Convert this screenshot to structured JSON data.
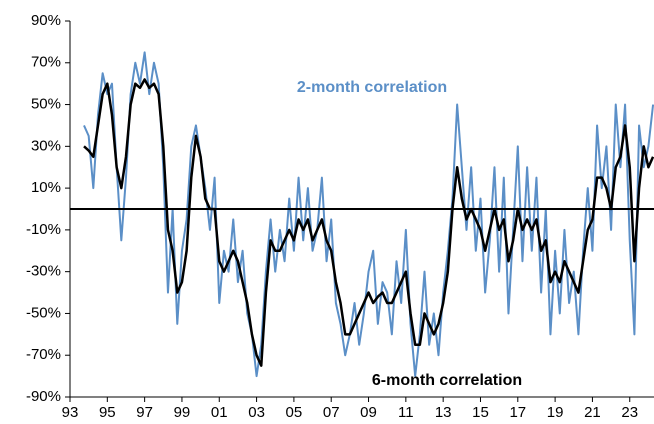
{
  "chart_data": {
    "type": "line",
    "annotations": [
      "2-month correlation",
      "6-month correlation"
    ],
    "x": [
      1993.75,
      1994,
      1994.25,
      1994.5,
      1994.75,
      1995,
      1995.25,
      1995.5,
      1995.75,
      1996,
      1996.25,
      1996.5,
      1996.75,
      1997,
      1997.25,
      1997.5,
      1997.75,
      1998,
      1998.25,
      1998.5,
      1998.75,
      1999,
      1999.25,
      1999.5,
      1999.75,
      2000,
      2000.25,
      2000.5,
      2000.75,
      2001,
      2001.25,
      2001.5,
      2001.75,
      2002,
      2002.25,
      2002.5,
      2002.75,
      2003,
      2003.25,
      2003.5,
      2003.75,
      2004,
      2004.25,
      2004.5,
      2004.75,
      2005,
      2005.25,
      2005.5,
      2005.75,
      2006,
      2006.25,
      2006.5,
      2006.75,
      2007,
      2007.25,
      2007.5,
      2007.75,
      2008,
      2008.25,
      2008.5,
      2008.75,
      2009,
      2009.25,
      2009.5,
      2009.75,
      2010,
      2010.25,
      2010.5,
      2010.75,
      2011,
      2011.25,
      2011.5,
      2011.75,
      2012,
      2012.25,
      2012.5,
      2012.75,
      2013,
      2013.25,
      2013.5,
      2013.75,
      2014,
      2014.25,
      2014.5,
      2014.75,
      2015,
      2015.25,
      2015.5,
      2015.75,
      2016,
      2016.25,
      2016.5,
      2016.75,
      2017,
      2017.25,
      2017.5,
      2017.75,
      2018,
      2018.25,
      2018.5,
      2018.75,
      2019,
      2019.25,
      2019.5,
      2019.75,
      2020,
      2020.25,
      2020.5,
      2020.75,
      2021,
      2021.25,
      2021.5,
      2021.75,
      2022,
      2022.25,
      2022.5,
      2022.75,
      2023,
      2023.25,
      2023.5,
      2023.75,
      2024,
      2024.25
    ],
    "series": [
      {
        "name": "2-month correlation",
        "color": "#5b8fc7",
        "width": 2,
        "values": [
          40,
          35,
          10,
          45,
          65,
          55,
          60,
          20,
          -15,
          15,
          55,
          70,
          60,
          75,
          55,
          70,
          60,
          20,
          -40,
          0,
          -55,
          -20,
          -5,
          30,
          40,
          25,
          10,
          -10,
          15,
          -45,
          -20,
          -30,
          -5,
          -35,
          -20,
          -50,
          -60,
          -80,
          -65,
          -30,
          -5,
          -30,
          -10,
          -25,
          5,
          -20,
          15,
          -15,
          10,
          -20,
          -10,
          15,
          -25,
          -5,
          -45,
          -55,
          -70,
          -60,
          -45,
          -65,
          -50,
          -30,
          -20,
          -55,
          -35,
          -40,
          -60,
          -25,
          -45,
          -10,
          -55,
          -80,
          -60,
          -30,
          -65,
          -50,
          -70,
          -40,
          -20,
          5,
          50,
          20,
          -10,
          20,
          -20,
          5,
          -40,
          -15,
          20,
          -30,
          15,
          -50,
          -10,
          30,
          -25,
          20,
          -20,
          15,
          -40,
          0,
          -60,
          -20,
          -50,
          -10,
          -45,
          -30,
          -60,
          -20,
          10,
          -20,
          40,
          10,
          30,
          -10,
          50,
          20,
          50,
          -15,
          -60,
          40,
          20,
          30,
          50
        ]
      },
      {
        "name": "6-month correlation",
        "color": "#000000",
        "width": 2.5,
        "values": [
          30,
          28,
          25,
          40,
          55,
          60,
          45,
          20,
          10,
          25,
          50,
          60,
          58,
          62,
          58,
          60,
          55,
          30,
          -10,
          -20,
          -40,
          -35,
          -20,
          15,
          35,
          25,
          5,
          0,
          0,
          -25,
          -30,
          -25,
          -20,
          -25,
          -35,
          -45,
          -60,
          -70,
          -75,
          -40,
          -15,
          -20,
          -20,
          -15,
          -10,
          -15,
          -5,
          -10,
          -5,
          -15,
          -10,
          -5,
          -15,
          -20,
          -35,
          -45,
          -60,
          -60,
          -55,
          -50,
          -45,
          -40,
          -45,
          -42,
          -40,
          -45,
          -45,
          -40,
          -35,
          -30,
          -50,
          -65,
          -65,
          -50,
          -55,
          -60,
          -55,
          -45,
          -30,
          0,
          20,
          5,
          -5,
          0,
          -5,
          -10,
          -20,
          -10,
          0,
          -10,
          -5,
          -25,
          -15,
          0,
          -10,
          -5,
          -10,
          -5,
          -20,
          -15,
          -35,
          -30,
          -35,
          -25,
          -30,
          -35,
          -40,
          -25,
          -10,
          -5,
          15,
          15,
          10,
          0,
          20,
          25,
          40,
          20,
          -25,
          10,
          30,
          20,
          25
        ]
      }
    ],
    "reference_line": 0,
    "xlim": [
      1993,
      2024.3
    ],
    "xticks": [
      {
        "value": 1993,
        "label": "93"
      },
      {
        "value": 1995,
        "label": "95"
      },
      {
        "value": 1997,
        "label": "97"
      },
      {
        "value": 1999,
        "label": "99"
      },
      {
        "value": 2001,
        "label": "01"
      },
      {
        "value": 2003,
        "label": "03"
      },
      {
        "value": 2005,
        "label": "05"
      },
      {
        "value": 2007,
        "label": "07"
      },
      {
        "value": 2009,
        "label": "09"
      },
      {
        "value": 2011,
        "label": "11"
      },
      {
        "value": 2013,
        "label": "13"
      },
      {
        "value": 2015,
        "label": "15"
      },
      {
        "value": 2017,
        "label": "17"
      },
      {
        "value": 2019,
        "label": "19"
      },
      {
        "value": 2021,
        "label": "21"
      },
      {
        "value": 2023,
        "label": "23"
      }
    ],
    "ylim": [
      -90,
      90
    ],
    "yticks": [
      {
        "value": -90,
        "label": "-90%"
      },
      {
        "value": -70,
        "label": "-70%"
      },
      {
        "value": -50,
        "label": "-50%"
      },
      {
        "value": -30,
        "label": "-30%"
      },
      {
        "value": -10,
        "label": "-10%"
      },
      {
        "value": 10,
        "label": "10%"
      },
      {
        "value": 30,
        "label": "30%"
      },
      {
        "value": 50,
        "label": "50%"
      },
      {
        "value": 70,
        "label": "70%"
      },
      {
        "value": 90,
        "label": "90%"
      }
    ]
  }
}
